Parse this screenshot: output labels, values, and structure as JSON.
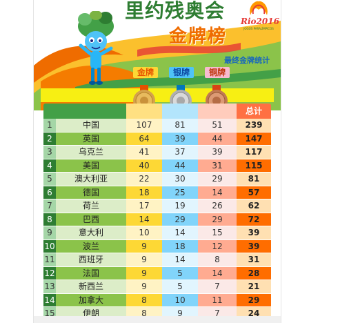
{
  "header": {
    "title": "里约残奥会",
    "subtitle": "金牌榜",
    "caption": "最终金牌统计",
    "logo_text": "Rio2016",
    "logo_sub": "JOGOS PARALÍMPICOS"
  },
  "medal_labels": {
    "gold": "金牌",
    "silver": "银牌",
    "bronze": "铜牌"
  },
  "total_label": "总计",
  "rows": [
    {
      "rank": "1",
      "country": "中国",
      "gold": "107",
      "silver": "81",
      "bronze": "51",
      "total": "239"
    },
    {
      "rank": "2",
      "country": "英国",
      "gold": "64",
      "silver": "39",
      "bronze": "44",
      "total": "147"
    },
    {
      "rank": "3",
      "country": "乌克兰",
      "gold": "41",
      "silver": "37",
      "bronze": "39",
      "total": "117"
    },
    {
      "rank": "4",
      "country": "美国",
      "gold": "40",
      "silver": "44",
      "bronze": "31",
      "total": "115"
    },
    {
      "rank": "5",
      "country": "澳大利亚",
      "gold": "22",
      "silver": "30",
      "bronze": "29",
      "total": "81"
    },
    {
      "rank": "6",
      "country": "德国",
      "gold": "18",
      "silver": "25",
      "bronze": "14",
      "total": "57"
    },
    {
      "rank": "7",
      "country": "荷兰",
      "gold": "17",
      "silver": "19",
      "bronze": "26",
      "total": "62"
    },
    {
      "rank": "8",
      "country": "巴西",
      "gold": "14",
      "silver": "29",
      "bronze": "29",
      "total": "72"
    },
    {
      "rank": "9",
      "country": "意大利",
      "gold": "10",
      "silver": "14",
      "bronze": "15",
      "total": "39"
    },
    {
      "rank": "10",
      "country": "波兰",
      "gold": "9",
      "silver": "18",
      "bronze": "12",
      "total": "39"
    },
    {
      "rank": "11",
      "country": "西班牙",
      "gold": "9",
      "silver": "14",
      "bronze": "8",
      "total": "31"
    },
    {
      "rank": "12",
      "country": "法国",
      "gold": "9",
      "silver": "5",
      "bronze": "14",
      "total": "28"
    },
    {
      "rank": "13",
      "country": "新西兰",
      "gold": "9",
      "silver": "5",
      "bronze": "7",
      "total": "21"
    },
    {
      "rank": "14",
      "country": "加拿大",
      "gold": "8",
      "silver": "10",
      "bronze": "11",
      "total": "29"
    },
    {
      "rank": "15",
      "country": "伊朗",
      "gold": "8",
      "silver": "9",
      "bronze": "7",
      "total": "24"
    }
  ],
  "colors": {
    "title_green": "#2e7d32",
    "title_orange": "#ef6c00",
    "rank_dark": "#2e7d32",
    "gold": "#fdd835",
    "silver": "#81d4fa",
    "bronze": "#ffab91",
    "total": "#ff6d00"
  },
  "icons": {
    "mascot": "tom-mascot-icon",
    "logo": "rio2016-paralympic-logo-icon",
    "medals": [
      "gold-medal-icon",
      "silver-medal-icon",
      "bronze-medal-icon"
    ]
  }
}
